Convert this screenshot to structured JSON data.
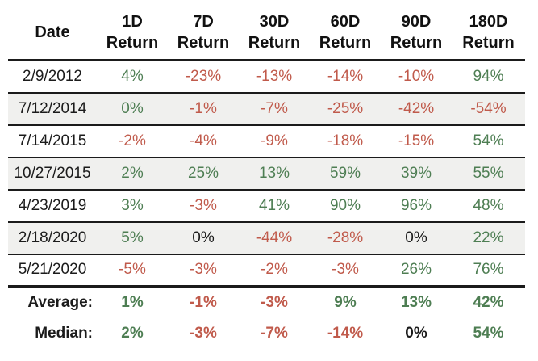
{
  "colors": {
    "positive": "#4e7e53",
    "negative": "#c05a4b",
    "neutral": "#1b1b1b",
    "stripe": "#f0f0ee",
    "border": "#1b1b1b",
    "header_text": "#111111"
  },
  "table": {
    "columns": [
      {
        "id": "date",
        "line1": "Date",
        "line2": ""
      },
      {
        "id": "1d",
        "line1": "1D",
        "line2": "Return"
      },
      {
        "id": "7d",
        "line1": "7D",
        "line2": "Return"
      },
      {
        "id": "30d",
        "line1": "30D",
        "line2": "Return"
      },
      {
        "id": "60d",
        "line1": "60D",
        "line2": "Return"
      },
      {
        "id": "90d",
        "line1": "90D",
        "line2": "Return"
      },
      {
        "id": "180d",
        "line1": "180D",
        "line2": "Return"
      }
    ],
    "rows": [
      {
        "date": "2/9/2012",
        "striped": false,
        "values": [
          {
            "text": "4%",
            "tone": "positive"
          },
          {
            "text": "-23%",
            "tone": "negative"
          },
          {
            "text": "-13%",
            "tone": "negative"
          },
          {
            "text": "-14%",
            "tone": "negative"
          },
          {
            "text": "-10%",
            "tone": "negative"
          },
          {
            "text": "94%",
            "tone": "positive"
          }
        ]
      },
      {
        "date": "7/12/2014",
        "striped": true,
        "values": [
          {
            "text": "0%",
            "tone": "positive"
          },
          {
            "text": "-1%",
            "tone": "negative"
          },
          {
            "text": "-7%",
            "tone": "negative"
          },
          {
            "text": "-25%",
            "tone": "negative"
          },
          {
            "text": "-42%",
            "tone": "negative"
          },
          {
            "text": "-54%",
            "tone": "negative"
          }
        ]
      },
      {
        "date": "7/14/2015",
        "striped": false,
        "values": [
          {
            "text": "-2%",
            "tone": "negative"
          },
          {
            "text": "-4%",
            "tone": "negative"
          },
          {
            "text": "-9%",
            "tone": "negative"
          },
          {
            "text": "-18%",
            "tone": "negative"
          },
          {
            "text": "-15%",
            "tone": "negative"
          },
          {
            "text": "54%",
            "tone": "positive"
          }
        ]
      },
      {
        "date": "10/27/2015",
        "striped": true,
        "values": [
          {
            "text": "2%",
            "tone": "positive"
          },
          {
            "text": "25%",
            "tone": "positive"
          },
          {
            "text": "13%",
            "tone": "positive"
          },
          {
            "text": "59%",
            "tone": "positive"
          },
          {
            "text": "39%",
            "tone": "positive"
          },
          {
            "text": "55%",
            "tone": "positive"
          }
        ]
      },
      {
        "date": "4/23/2019",
        "striped": false,
        "values": [
          {
            "text": "3%",
            "tone": "positive"
          },
          {
            "text": "-3%",
            "tone": "negative"
          },
          {
            "text": "41%",
            "tone": "positive"
          },
          {
            "text": "90%",
            "tone": "positive"
          },
          {
            "text": "96%",
            "tone": "positive"
          },
          {
            "text": "48%",
            "tone": "positive"
          }
        ]
      },
      {
        "date": "2/18/2020",
        "striped": true,
        "values": [
          {
            "text": "5%",
            "tone": "positive"
          },
          {
            "text": "0%",
            "tone": "neutral"
          },
          {
            "text": "-44%",
            "tone": "negative"
          },
          {
            "text": "-28%",
            "tone": "negative"
          },
          {
            "text": "0%",
            "tone": "neutral"
          },
          {
            "text": "22%",
            "tone": "positive"
          }
        ]
      },
      {
        "date": "5/21/2020",
        "striped": false,
        "values": [
          {
            "text": "-5%",
            "tone": "negative"
          },
          {
            "text": "-3%",
            "tone": "negative"
          },
          {
            "text": "-2%",
            "tone": "negative"
          },
          {
            "text": "-3%",
            "tone": "negative"
          },
          {
            "text": "26%",
            "tone": "positive"
          },
          {
            "text": "76%",
            "tone": "positive"
          }
        ]
      }
    ],
    "summary_rows": [
      {
        "label": "Average:",
        "values": [
          {
            "text": "1%",
            "tone": "positive"
          },
          {
            "text": "-1%",
            "tone": "negative"
          },
          {
            "text": "-3%",
            "tone": "negative"
          },
          {
            "text": "9%",
            "tone": "positive"
          },
          {
            "text": "13%",
            "tone": "positive"
          },
          {
            "text": "42%",
            "tone": "positive"
          }
        ]
      },
      {
        "label": "Median:",
        "values": [
          {
            "text": "2%",
            "tone": "positive"
          },
          {
            "text": "-3%",
            "tone": "negative"
          },
          {
            "text": "-7%",
            "tone": "negative"
          },
          {
            "text": "-14%",
            "tone": "negative"
          },
          {
            "text": "0%",
            "tone": "neutral"
          },
          {
            "text": "54%",
            "tone": "positive"
          }
        ]
      }
    ]
  }
}
